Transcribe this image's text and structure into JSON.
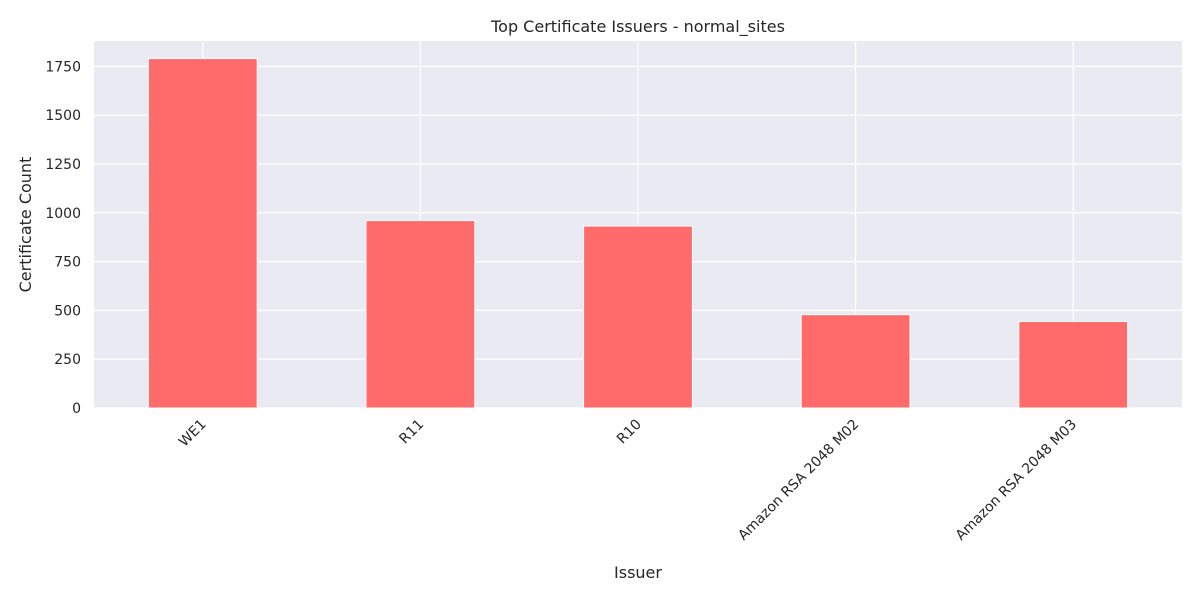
{
  "chart_data": {
    "type": "bar",
    "title": "Top Certificate Issuers - normal_sites",
    "xlabel": "Issuer",
    "ylabel": "Certificate Count",
    "categories": [
      "WE1",
      "R11",
      "R10",
      "Amazon RSA 2048 M02",
      "Amazon RSA 2048 M03"
    ],
    "values": [
      1790,
      960,
      932,
      478,
      443
    ],
    "ylim": [
      0,
      1880
    ],
    "yticks": [
      0,
      250,
      500,
      750,
      1000,
      1250,
      1500,
      1750
    ],
    "grid": true,
    "legend": "none",
    "colors": {
      "bar": "#ff6b6b",
      "background": "#eaeaf2",
      "grid": "#ffffff",
      "text": "#262626"
    }
  }
}
